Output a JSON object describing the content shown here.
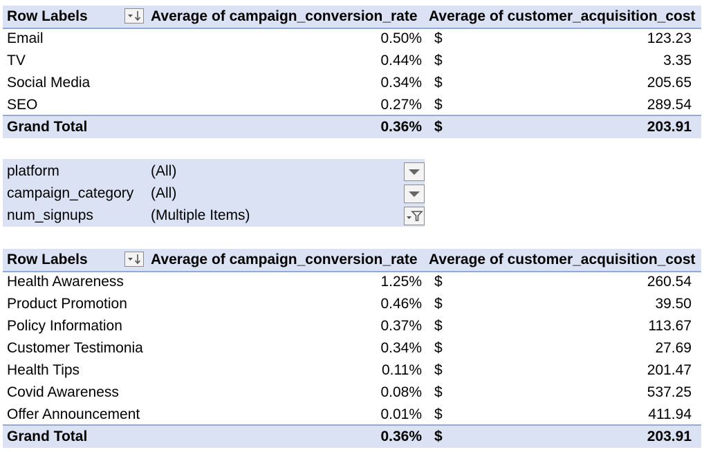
{
  "pivot1": {
    "header": {
      "row_labels": "Row Labels",
      "col_conversion": "Average of campaign_conversion_rate",
      "col_cost": "Average of customer_acquisition_cost"
    },
    "rows": [
      {
        "label": "Email",
        "conversion": "0.50%",
        "dollar": "$",
        "cost": "123.23"
      },
      {
        "label": "TV",
        "conversion": "0.44%",
        "dollar": "$",
        "cost": "3.35"
      },
      {
        "label": "Social Media",
        "conversion": "0.34%",
        "dollar": "$",
        "cost": "205.65"
      },
      {
        "label": "SEO",
        "conversion": "0.27%",
        "dollar": "$",
        "cost": "289.54"
      }
    ],
    "total": {
      "label": "Grand Total",
      "conversion": "0.36%",
      "dollar": "$",
      "cost": "203.91"
    }
  },
  "filters": [
    {
      "name": "platform",
      "value": "(All)",
      "icon": "dropdown-arrow-icon"
    },
    {
      "name": "campaign_category",
      "value": "(All)",
      "icon": "dropdown-arrow-icon"
    },
    {
      "name": "num_signups",
      "value": "(Multiple Items)",
      "icon": "filter-funnel-icon"
    }
  ],
  "pivot2": {
    "header": {
      "row_labels": "Row Labels",
      "col_conversion": "Average of campaign_conversion_rate",
      "col_cost": "Average of customer_acquisition_cost"
    },
    "rows": [
      {
        "label": "Health Awareness",
        "conversion": "1.25%",
        "dollar": "$",
        "cost": "260.54"
      },
      {
        "label": "Product Promotion",
        "conversion": "0.46%",
        "dollar": "$",
        "cost": "39.50"
      },
      {
        "label": "Policy Information",
        "conversion": "0.37%",
        "dollar": "$",
        "cost": "113.67"
      },
      {
        "label": "Customer Testimonia",
        "conversion": "0.34%",
        "dollar": "$",
        "cost": "27.69"
      },
      {
        "label": "Health Tips",
        "conversion": "0.11%",
        "dollar": "$",
        "cost": "201.47"
      },
      {
        "label": "Covid Awareness",
        "conversion": "0.08%",
        "dollar": "$",
        "cost": "537.25"
      },
      {
        "label": "Offer Announcement",
        "conversion": "0.01%",
        "dollar": "$",
        "cost": "411.94"
      }
    ],
    "total": {
      "label": "Grand Total",
      "conversion": "0.36%",
      "dollar": "$",
      "cost": "203.91"
    }
  },
  "colors": {
    "header_bg": "#dae2f3",
    "border": "#93a9d6"
  }
}
